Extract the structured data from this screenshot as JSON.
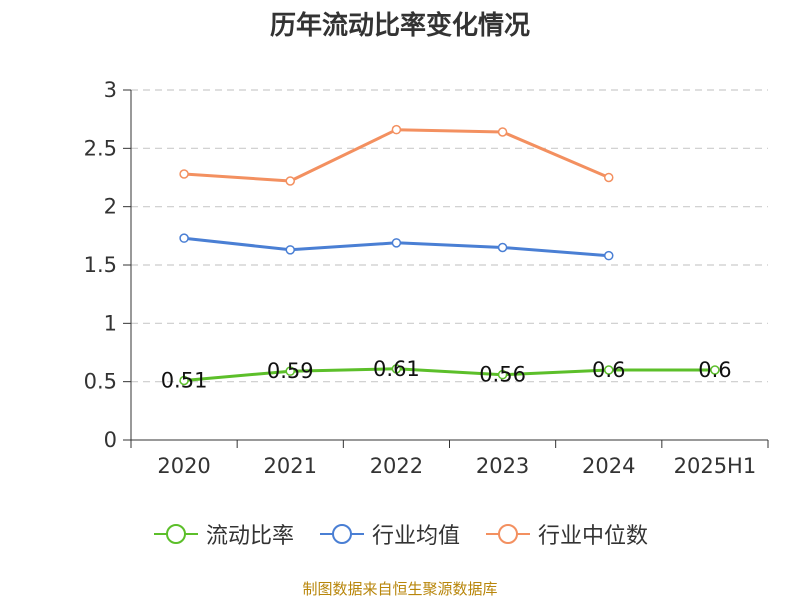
{
  "chart_data": {
    "type": "line",
    "title": "历年流动比率变化情况",
    "categories": [
      "2020",
      "2021",
      "2022",
      "2023",
      "2024",
      "2025H1"
    ],
    "ylim": [
      0,
      3
    ],
    "yticks": [
      "0",
      "0.5",
      "1",
      "1.5",
      "2",
      "2.5",
      "3"
    ],
    "grid": true,
    "legend_position": "bottom",
    "series": [
      {
        "name": "流动比率",
        "color": "#5cbf2a",
        "values": [
          0.51,
          0.59,
          0.61,
          0.56,
          0.6,
          0.6
        ],
        "labels": [
          "0.51",
          "0.59",
          "0.61",
          "0.56",
          "0.6",
          "0.6"
        ]
      },
      {
        "name": "行业均值",
        "color": "#4a7fd4",
        "values": [
          1.73,
          1.63,
          1.69,
          1.65,
          1.58,
          null
        ]
      },
      {
        "name": "行业中位数",
        "color": "#f39060",
        "values": [
          2.28,
          2.22,
          2.66,
          2.64,
          2.25,
          null
        ]
      }
    ]
  },
  "source_note": "制图数据来自恒生聚源数据库"
}
